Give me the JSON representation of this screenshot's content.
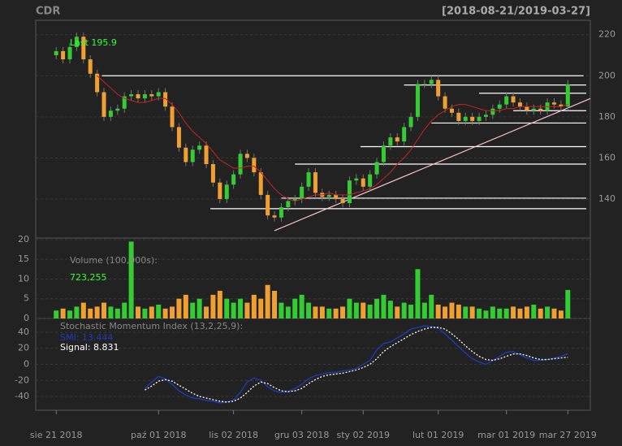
{
  "chart_data": [
    {
      "type": "candlestick",
      "title": "CDR",
      "subtitle": "[2018-08-21/2019-03-27]",
      "annotation": "Last 195.9",
      "xlim": [
        -3,
        78.3
      ],
      "ylim": [
        121,
        227
      ],
      "yticks": [
        140,
        160,
        180,
        200,
        220
      ],
      "grid": true,
      "up_color": "#33cc33",
      "down_color": "#f0a030",
      "open": [
        210,
        212,
        208,
        214,
        219,
        208,
        201,
        192,
        180,
        183,
        184,
        190,
        191,
        189,
        191,
        190,
        192,
        185,
        175,
        165,
        158,
        164,
        166,
        157,
        148,
        140,
        147,
        152,
        162,
        160,
        153,
        142,
        132,
        131,
        136,
        139,
        140,
        146,
        153,
        143,
        141,
        142,
        140,
        138,
        149,
        150,
        146,
        152,
        158,
        166,
        170,
        168,
        175,
        180,
        196,
        196,
        198,
        190,
        184,
        182,
        178,
        180,
        178,
        180,
        181,
        184,
        186,
        190,
        187,
        185,
        183,
        184,
        183,
        187,
        186,
        185
      ],
      "high": [
        214,
        214,
        216,
        221,
        221,
        210,
        203,
        194,
        185,
        186,
        192,
        193,
        193,
        193,
        193,
        194,
        194,
        187,
        177,
        167,
        166,
        168,
        168,
        159,
        150,
        149,
        154,
        164,
        164,
        162,
        155,
        144,
        134,
        138,
        141,
        142,
        148,
        155,
        155,
        145,
        144,
        144,
        142,
        151,
        152,
        152,
        154,
        160,
        168,
        172,
        172,
        177,
        182,
        198,
        198,
        200,
        200,
        192,
        186,
        184,
        182,
        182,
        182,
        183,
        186,
        188,
        192,
        192,
        189,
        187,
        186,
        186,
        189,
        189,
        188,
        198
      ],
      "low": [
        208,
        206,
        206,
        212,
        206,
        199,
        190,
        178,
        178,
        181,
        182,
        188,
        187,
        187,
        188,
        188,
        183,
        173,
        163,
        156,
        156,
        162,
        155,
        146,
        138,
        138,
        145,
        150,
        158,
        151,
        140,
        130,
        129,
        129,
        134,
        137,
        138,
        144,
        141,
        139,
        139,
        138,
        136,
        136,
        147,
        144,
        144,
        150,
        156,
        164,
        166,
        166,
        173,
        178,
        194,
        194,
        188,
        182,
        180,
        176,
        176,
        176,
        176,
        178,
        179,
        182,
        184,
        185,
        183,
        181,
        181,
        181,
        181,
        184,
        183,
        183
      ],
      "close": [
        212,
        208,
        214,
        219,
        208,
        201,
        192,
        180,
        183,
        184,
        190,
        191,
        189,
        191,
        190,
        192,
        185,
        175,
        165,
        158,
        164,
        166,
        157,
        148,
        140,
        147,
        152,
        162,
        160,
        153,
        142,
        132,
        131,
        136,
        139,
        140,
        146,
        153,
        143,
        141,
        142,
        140,
        138,
        149,
        150,
        146,
        152,
        158,
        166,
        170,
        168,
        175,
        180,
        196,
        196,
        198,
        190,
        184,
        182,
        178,
        180,
        178,
        180,
        181,
        184,
        186,
        190,
        187,
        185,
        183,
        184,
        183,
        187,
        186,
        185,
        195.9
      ],
      "sma": {
        "color": "#cc2222",
        "values": [
          null,
          null,
          null,
          null,
          null,
          null,
          200,
          197,
          194,
          191,
          189,
          188,
          187,
          187,
          188,
          189,
          189,
          186,
          182,
          177,
          173,
          170,
          167,
          163,
          159,
          157,
          155,
          155,
          156,
          156,
          153,
          149,
          145,
          142,
          140,
          139,
          140,
          141,
          142,
          142,
          143,
          142,
          142,
          142,
          143,
          144,
          145,
          147,
          150,
          153,
          157,
          160,
          164,
          169,
          174,
          178,
          181,
          183,
          185,
          186,
          186,
          185,
          184,
          183,
          183,
          183,
          184,
          184,
          185,
          185,
          185,
          185,
          185,
          185,
          185,
          186
        ]
      },
      "levels_color": "#ffffff",
      "levels": [
        {
          "x": [
            6.7,
            77.3
          ],
          "y": 200
        },
        {
          "x": [
            51,
            77.7
          ],
          "y": 195.5
        },
        {
          "x": [
            62,
            77.7
          ],
          "y": 191.5
        },
        {
          "x": [
            67,
            77.7
          ],
          "y": 183
        },
        {
          "x": [
            55,
            77.7
          ],
          "y": 177
        },
        {
          "x": [
            44.6,
            77.7
          ],
          "y": 165.5
        },
        {
          "x": [
            35,
            77.7
          ],
          "y": 157
        },
        {
          "x": [
            33,
            77.7
          ],
          "y": 140.4
        },
        {
          "x": [
            22.6,
            77.7
          ],
          "y": 135.3
        }
      ],
      "trendline": {
        "color": "#ffc0cb",
        "x": [
          32,
          78.3
        ],
        "y": [
          124.6,
          188.9
        ]
      }
    },
    {
      "type": "bar",
      "title": "Volume (100,000s):",
      "last_label": "723,255",
      "xlim": [
        -3,
        78.3
      ],
      "ylim": [
        0,
        20.4
      ],
      "yticks": [
        0,
        5,
        10,
        15,
        20
      ],
      "grid": true,
      "values": [
        2,
        2.5,
        2,
        3,
        4,
        2.5,
        3,
        4,
        3,
        2.5,
        4,
        19.5,
        3,
        2.5,
        3,
        3.5,
        2.5,
        3,
        5,
        6,
        4,
        5,
        3,
        6,
        7,
        5,
        4,
        5,
        4,
        6,
        5,
        8.5,
        7,
        4,
        3,
        5,
        6,
        4,
        3,
        3,
        2.5,
        2.5,
        3,
        5,
        4,
        4,
        3.5,
        5,
        6,
        4.5,
        3,
        4,
        3.5,
        12.5,
        4,
        6,
        3.5,
        3,
        4,
        3.5,
        3,
        3,
        2.5,
        2,
        3,
        2.5,
        2.5,
        3,
        2.5,
        3,
        3.5,
        2.5,
        3,
        2.5,
        2,
        7.23255
      ]
    },
    {
      "type": "line",
      "title": "Stochastic Momentum Index (13,2,25,9):",
      "xlim": [
        -3,
        78.3
      ],
      "ylim": [
        -57.2,
        57.2
      ],
      "yticks": [
        -40,
        -20,
        0,
        20,
        40
      ],
      "grid": true,
      "xticks": [
        {
          "value": 0,
          "label": "sie 21 2018"
        },
        {
          "value": 15,
          "label": "paź 01 2018"
        },
        {
          "value": 26,
          "label": "lis 02 2018"
        },
        {
          "value": 36,
          "label": "gru 03 2018"
        },
        {
          "value": 45,
          "label": "sty 02 2019"
        },
        {
          "value": 56,
          "label": "lut 01 2019"
        },
        {
          "value": 66,
          "label": "mar 01 2019"
        },
        {
          "value": 75,
          "label": "mar 27 2019"
        }
      ],
      "series": [
        {
          "name": "SMI: 13.444",
          "color": "#1c3cbf",
          "dashed": false,
          "values": [
            null,
            null,
            null,
            null,
            null,
            null,
            null,
            null,
            null,
            null,
            null,
            null,
            null,
            -30,
            -22,
            -15,
            -18,
            -25,
            -33,
            -38,
            -42,
            -43,
            -45,
            -46,
            -48,
            -47,
            -44,
            -35,
            -22,
            -17,
            -20,
            -28,
            -33,
            -35,
            -34,
            -30,
            -25,
            -18,
            -14,
            -12,
            -10,
            -10,
            -8,
            -7,
            -5,
            0,
            5,
            18,
            26,
            28,
            33,
            38,
            44,
            46,
            48,
            47,
            45,
            38,
            30,
            22,
            14,
            7,
            3,
            0,
            5,
            10,
            15,
            16,
            12,
            8,
            5,
            5,
            6,
            8,
            10,
            13.444
          ]
        },
        {
          "name": "Signal: 8.831",
          "color": "#ffffff",
          "dashed": true,
          "values": [
            null,
            null,
            null,
            null,
            null,
            null,
            null,
            null,
            null,
            null,
            null,
            null,
            null,
            -32,
            -27,
            -21,
            -19,
            -21,
            -26,
            -31,
            -36,
            -40,
            -42,
            -44,
            -46,
            -47,
            -46,
            -42,
            -35,
            -27,
            -22,
            -24,
            -29,
            -33,
            -34,
            -33,
            -30,
            -24,
            -19,
            -15,
            -13,
            -12,
            -11,
            -9,
            -7,
            -4,
            0,
            7,
            16,
            22,
            27,
            32,
            37,
            41,
            44,
            46,
            46,
            44,
            38,
            31,
            23,
            16,
            10,
            6,
            5,
            7,
            10,
            13,
            13,
            11,
            8,
            6,
            6,
            7,
            8,
            8.831
          ]
        }
      ]
    }
  ]
}
